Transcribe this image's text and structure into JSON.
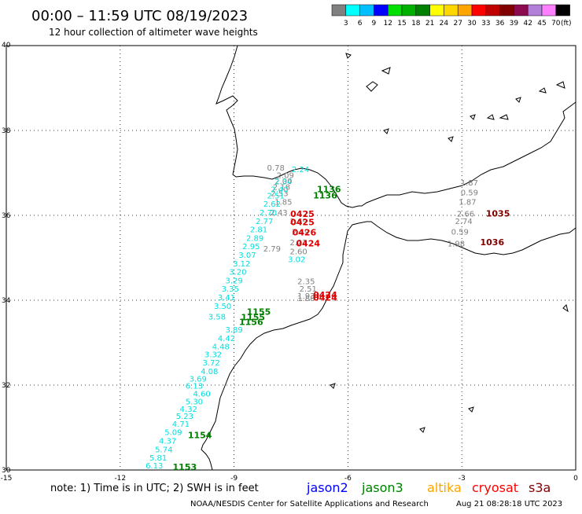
{
  "header": {
    "title": "00:00 – 11:59 UTC 08/19/2023",
    "subtitle": "12 hour collection of altimeter wave heights"
  },
  "colorbar": {
    "colors": [
      "#808080",
      "#00ffff",
      "#00bfff",
      "#0000ff",
      "#00e000",
      "#00b000",
      "#008000",
      "#ffff00",
      "#ffd700",
      "#ffa500",
      "#ff0000",
      "#c00000",
      "#800000",
      "#8b0a50",
      "#b27fd9",
      "#ff80ff",
      "#000000"
    ],
    "labels": [
      "3",
      "6",
      "9",
      "12",
      "15",
      "18",
      "21",
      "24",
      "27",
      "30",
      "33",
      "36",
      "39",
      "42",
      "45",
      "70"
    ],
    "unit": "(ft)"
  },
  "axes": {
    "lon_ticks": [
      "-15",
      "-12",
      "-9",
      "-6",
      "-3",
      "0"
    ],
    "lat_ticks": [
      "40",
      "38",
      "36",
      "34",
      "32",
      "30"
    ]
  },
  "footer": {
    "note": "note: 1) Time is in UTC; 2) SWH is in feet",
    "legend": [
      {
        "name": "jason2",
        "color": "#0000ff"
      },
      {
        "name": "jason3",
        "color": "#008000"
      },
      {
        "name": "altika",
        "color": "#ffa500"
      },
      {
        "name": "cryosat",
        "color": "#ff0000"
      },
      {
        "name": "s3a",
        "color": "#800000"
      }
    ],
    "credit": "NOAA/NESDIS Center for Satellite Applications and Research",
    "timestamp": "Aug 21 08:28:18 UTC 2023"
  },
  "chart_data": {
    "type": "scatter",
    "projection": "lon-lat",
    "xlim": [
      -15,
      0
    ],
    "ylim": [
      30,
      40
    ],
    "grid": true,
    "swh_points": [
      {
        "lon": -7.9,
        "lat": 37.06,
        "t": "0.78",
        "c": "#808080"
      },
      {
        "lon": -7.65,
        "lat": 36.88,
        "t": "2.09",
        "c": "#808080"
      },
      {
        "lon": -7.7,
        "lat": 36.74,
        "t": "2.00",
        "c": "#808080"
      },
      {
        "lon": -7.75,
        "lat": 36.6,
        "t": "2.18",
        "c": "#808080"
      },
      {
        "lon": -7.8,
        "lat": 36.45,
        "t": "2.53",
        "c": "#808080"
      },
      {
        "lon": -7.7,
        "lat": 36.25,
        "t": "1.85",
        "c": "#808080"
      },
      {
        "lon": -7.82,
        "lat": 36.0,
        "t": "2.43",
        "c": "#808080"
      },
      {
        "lon": -7.3,
        "lat": 35.8,
        "t": "2.69",
        "c": "#808080"
      },
      {
        "lon": -7.25,
        "lat": 35.55,
        "t": "2.49",
        "c": "#808080"
      },
      {
        "lon": -7.3,
        "lat": 35.3,
        "t": "2.22",
        "c": "#808080"
      },
      {
        "lon": -7.3,
        "lat": 35.08,
        "t": "2.60",
        "c": "#808080"
      },
      {
        "lon": -8.0,
        "lat": 35.15,
        "t": "2.79",
        "c": "#808080"
      },
      {
        "lon": -7.1,
        "lat": 34.38,
        "t": "2.35",
        "c": "#808080"
      },
      {
        "lon": -7.05,
        "lat": 34.2,
        "t": "2.51",
        "c": "#808080"
      },
      {
        "lon": -7.1,
        "lat": 34.04,
        "t": "1.93",
        "c": "#808080"
      },
      {
        "lon": -7.1,
        "lat": 33.98,
        "t": "1.88",
        "c": "#808080"
      },
      {
        "lon": -2.8,
        "lat": 36.7,
        "t": "1.87",
        "c": "#808080"
      },
      {
        "lon": -2.8,
        "lat": 36.47,
        "t": "0.59",
        "c": "#808080"
      },
      {
        "lon": -2.85,
        "lat": 36.25,
        "t": "1.87",
        "c": "#808080"
      },
      {
        "lon": -2.9,
        "lat": 35.97,
        "t": "2.66",
        "c": "#808080"
      },
      {
        "lon": -2.95,
        "lat": 35.8,
        "t": "2.74",
        "c": "#808080"
      },
      {
        "lon": -3.05,
        "lat": 35.55,
        "t": "0.59",
        "c": "#808080"
      },
      {
        "lon": -3.15,
        "lat": 35.27,
        "t": "1.98",
        "c": "#808080"
      },
      {
        "lon": -7.25,
        "lat": 37.02,
        "t": "2.24",
        "c": "#00e0e0"
      },
      {
        "lon": -7.7,
        "lat": 36.73,
        "t": "2.34",
        "c": "#00e0e0"
      },
      {
        "lon": -7.8,
        "lat": 36.55,
        "t": "2.40",
        "c": "#00e0e0"
      },
      {
        "lon": -7.9,
        "lat": 36.4,
        "t": "2.51",
        "c": "#00e0e0"
      },
      {
        "lon": -8.0,
        "lat": 36.2,
        "t": "2.62",
        "c": "#00e0e0"
      },
      {
        "lon": -8.1,
        "lat": 36.0,
        "t": "2.70",
        "c": "#00e0e0"
      },
      {
        "lon": -8.2,
        "lat": 35.8,
        "t": "2.77",
        "c": "#00e0e0"
      },
      {
        "lon": -8.35,
        "lat": 35.6,
        "t": "2.81",
        "c": "#00e0e0"
      },
      {
        "lon": -8.45,
        "lat": 35.4,
        "t": "2.89",
        "c": "#00e0e0"
      },
      {
        "lon": -7.35,
        "lat": 34.9,
        "t": "3.02",
        "c": "#00e0e0"
      },
      {
        "lon": -8.55,
        "lat": 35.2,
        "t": "2.95",
        "c": "#00e0e0"
      },
      {
        "lon": -8.65,
        "lat": 35.0,
        "t": "3.07",
        "c": "#00e0e0"
      },
      {
        "lon": -8.8,
        "lat": 34.8,
        "t": "3.12",
        "c": "#00e0e0"
      },
      {
        "lon": -8.9,
        "lat": 34.6,
        "t": "3.20",
        "c": "#00e0e0"
      },
      {
        "lon": -9.0,
        "lat": 34.4,
        "t": "3.29",
        "c": "#00e0e0"
      },
      {
        "lon": -9.1,
        "lat": 34.2,
        "t": "3.35",
        "c": "#00e0e0"
      },
      {
        "lon": -9.2,
        "lat": 34.0,
        "t": "3.41",
        "c": "#00e0e0"
      },
      {
        "lon": -9.3,
        "lat": 33.8,
        "t": "3.50",
        "c": "#00e0e0"
      },
      {
        "lon": -9.45,
        "lat": 33.55,
        "t": "3.58",
        "c": "#00e0e0"
      },
      {
        "lon": -9.0,
        "lat": 33.24,
        "t": "3.89",
        "c": "#00e0e0"
      },
      {
        "lon": -9.2,
        "lat": 33.04,
        "t": "4.42",
        "c": "#00e0e0"
      },
      {
        "lon": -9.35,
        "lat": 32.84,
        "t": "4.48",
        "c": "#00e0e0"
      },
      {
        "lon": -9.55,
        "lat": 32.66,
        "t": "3.32",
        "c": "#00e0e0"
      },
      {
        "lon": -9.6,
        "lat": 32.46,
        "t": "3.72",
        "c": "#00e0e0"
      },
      {
        "lon": -9.65,
        "lat": 32.26,
        "t": "4.08",
        "c": "#00e0e0"
      },
      {
        "lon": -9.95,
        "lat": 32.08,
        "t": "3.69",
        "c": "#00e0e0"
      },
      {
        "lon": -10.05,
        "lat": 31.92,
        "t": "6.13",
        "c": "#00e0e0"
      },
      {
        "lon": -9.85,
        "lat": 31.73,
        "t": "4.60",
        "c": "#00e0e0"
      },
      {
        "lon": -10.05,
        "lat": 31.55,
        "t": "5.30",
        "c": "#00e0e0"
      },
      {
        "lon": -10.2,
        "lat": 31.37,
        "t": "4.32",
        "c": "#00e0e0"
      },
      {
        "lon": -10.3,
        "lat": 31.2,
        "t": "5.23",
        "c": "#00e0e0"
      },
      {
        "lon": -10.4,
        "lat": 31.02,
        "t": "4.71",
        "c": "#00e0e0"
      },
      {
        "lon": -10.6,
        "lat": 30.82,
        "t": "5.09",
        "c": "#00e0e0"
      },
      {
        "lon": -10.75,
        "lat": 30.62,
        "t": "4.37",
        "c": "#00e0e0"
      },
      {
        "lon": -10.85,
        "lat": 30.42,
        "t": "5.74",
        "c": "#00e0e0"
      },
      {
        "lon": -11.0,
        "lat": 30.22,
        "t": "5.81",
        "c": "#00e0e0"
      },
      {
        "lon": -11.1,
        "lat": 30.04,
        "t": "6.13",
        "c": "#00e0e0"
      }
    ],
    "time_labels": [
      {
        "lon": -6.5,
        "lat": 36.55,
        "t": "1136",
        "c": "#008000"
      },
      {
        "lon": -6.6,
        "lat": 36.4,
        "t": "1136",
        "c": "#008000"
      },
      {
        "lon": -7.2,
        "lat": 35.96,
        "t": "0425",
        "c": "#e00000"
      },
      {
        "lon": -7.2,
        "lat": 35.77,
        "t": "0425",
        "c": "#e00000"
      },
      {
        "lon": -7.15,
        "lat": 35.53,
        "t": "0426",
        "c": "#e00000"
      },
      {
        "lon": -7.05,
        "lat": 35.27,
        "t": "0424",
        "c": "#e00000"
      },
      {
        "lon": -6.6,
        "lat": 34.06,
        "t": "0424",
        "c": "#e00000"
      },
      {
        "lon": -6.6,
        "lat": 33.99,
        "t": "0424",
        "c": "#e00000"
      },
      {
        "lon": -2.05,
        "lat": 35.97,
        "t": "1035",
        "c": "#800000"
      },
      {
        "lon": -2.2,
        "lat": 35.3,
        "t": "1036",
        "c": "#800000"
      },
      {
        "lon": -8.35,
        "lat": 33.66,
        "t": "1155",
        "c": "#008000"
      },
      {
        "lon": -8.5,
        "lat": 33.53,
        "t": "1155",
        "c": "#008000"
      },
      {
        "lon": -8.55,
        "lat": 33.42,
        "t": "1156",
        "c": "#008000"
      },
      {
        "lon": -9.9,
        "lat": 30.75,
        "t": "1154",
        "c": "#008000"
      },
      {
        "lon": -10.3,
        "lat": 30.0,
        "t": "1153",
        "c": "#008000"
      }
    ]
  }
}
